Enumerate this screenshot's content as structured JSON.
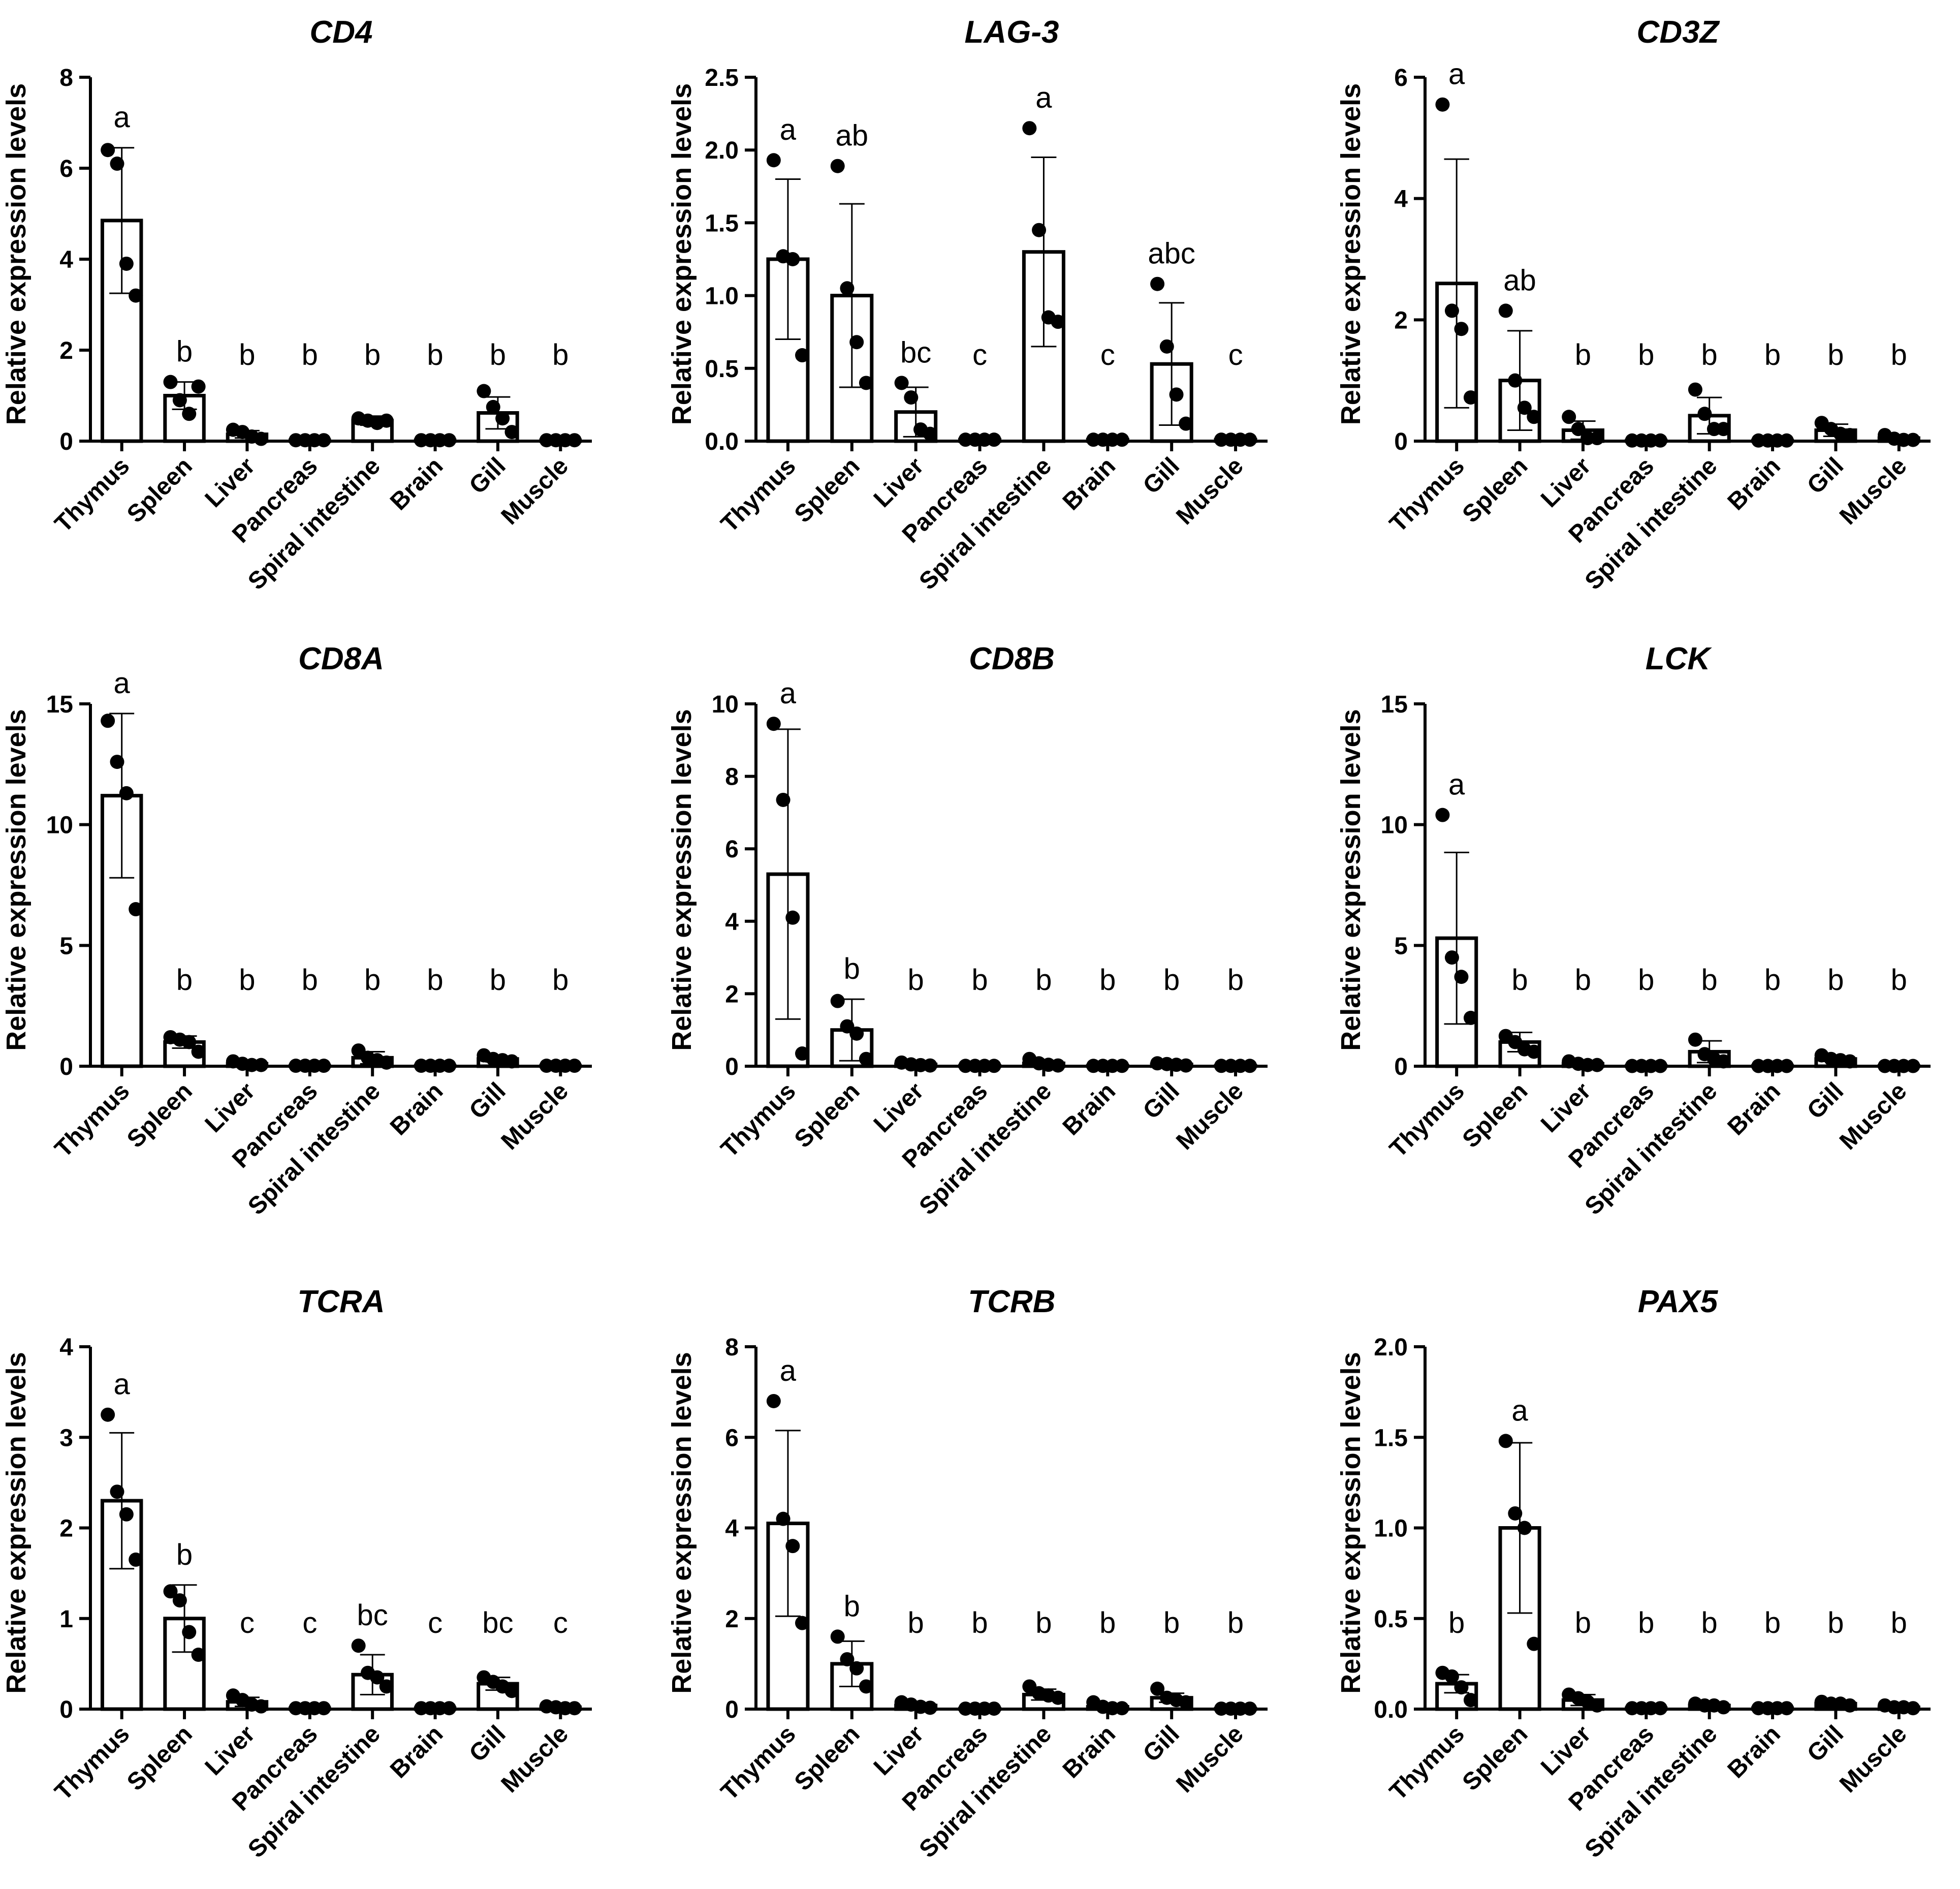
{
  "chart_data": [
    {
      "type": "bar",
      "title": "CD4",
      "ylabel": "Relative expression levels",
      "categories": [
        "Thymus",
        "Spleen",
        "Liver",
        "Pancreas",
        "Spiral intestine",
        "Brain",
        "Gill",
        "Muscle"
      ],
      "ylim": [
        0,
        8
      ],
      "yticks": [
        0,
        2,
        4,
        6,
        8
      ],
      "ytick_labels": [
        "0",
        "2",
        "4",
        "6",
        "8"
      ],
      "values": [
        4.85,
        1.0,
        0.15,
        0.02,
        0.45,
        0.02,
        0.62,
        0.02
      ],
      "errors": [
        1.6,
        0.3,
        0.08,
        0.02,
        0.1,
        0.02,
        0.35,
        0.02
      ],
      "points": [
        [
          6.4,
          6.1,
          3.9,
          3.2
        ],
        [
          1.3,
          0.9,
          0.6,
          1.2
        ],
        [
          0.25,
          0.2,
          0.1,
          0.05
        ],
        [
          0.02,
          0.02,
          0.02,
          0.02
        ],
        [
          0.5,
          0.45,
          0.4,
          0.45
        ],
        [
          0.02,
          0.02,
          0.02,
          0.02
        ],
        [
          1.1,
          0.75,
          0.5,
          0.2
        ],
        [
          0.02,
          0.02,
          0.02,
          0.02
        ]
      ],
      "letters": [
        "a",
        "b",
        "b",
        "b",
        "b",
        "b",
        "b",
        "b"
      ]
    },
    {
      "type": "bar",
      "title": "LAG-3",
      "ylabel": "Relative expression levels",
      "categories": [
        "Thymus",
        "Spleen",
        "Liver",
        "Pancreas",
        "Spiral intestine",
        "Brain",
        "Gill",
        "Muscle"
      ],
      "ylim": [
        0,
        2.5
      ],
      "yticks": [
        0,
        0.5,
        1.0,
        1.5,
        2.0,
        2.5
      ],
      "ytick_labels": [
        "0.0",
        "0.5",
        "1.0",
        "1.5",
        "2.0",
        "2.5"
      ],
      "values": [
        1.25,
        1.0,
        0.2,
        0.01,
        1.3,
        0.01,
        0.53,
        0.01
      ],
      "errors": [
        0.55,
        0.63,
        0.17,
        0.01,
        0.65,
        0.01,
        0.42,
        0.01
      ],
      "points": [
        [
          1.93,
          1.27,
          1.25,
          0.59
        ],
        [
          1.89,
          1.05,
          0.68,
          0.4
        ],
        [
          0.4,
          0.3,
          0.08,
          0.05
        ],
        [
          0.01,
          0.01,
          0.01,
          0.01
        ],
        [
          2.15,
          1.45,
          0.85,
          0.82
        ],
        [
          0.01,
          0.01,
          0.01,
          0.01
        ],
        [
          1.08,
          0.65,
          0.32,
          0.12
        ],
        [
          0.01,
          0.01,
          0.01,
          0.01
        ]
      ],
      "letters": [
        "a",
        "ab",
        "bc",
        "c",
        "a",
        "c",
        "abc",
        "c"
      ]
    },
    {
      "type": "bar",
      "title": "CD3Z",
      "ylabel": "Relative expression levels",
      "categories": [
        "Thymus",
        "Spleen",
        "Liver",
        "Pancreas",
        "Spiral intestine",
        "Brain",
        "Gill",
        "Muscle"
      ],
      "ylim": [
        0,
        6
      ],
      "yticks": [
        0,
        2,
        4,
        6
      ],
      "ytick_labels": [
        "0",
        "2",
        "4",
        "6"
      ],
      "values": [
        2.6,
        1.0,
        0.18,
        0.01,
        0.42,
        0.01,
        0.18,
        0.05
      ],
      "errors": [
        2.05,
        0.82,
        0.15,
        0.01,
        0.3,
        0.01,
        0.1,
        0.04
      ],
      "points": [
        [
          5.55,
          2.15,
          1.85,
          0.72
        ],
        [
          2.15,
          1.0,
          0.55,
          0.4
        ],
        [
          0.4,
          0.2,
          0.05,
          0.05
        ],
        [
          0.01,
          0.01,
          0.01,
          0.01
        ],
        [
          0.85,
          0.45,
          0.2,
          0.2
        ],
        [
          0.01,
          0.01,
          0.01,
          0.01
        ],
        [
          0.3,
          0.2,
          0.12,
          0.1
        ],
        [
          0.1,
          0.04,
          0.02,
          0.02
        ]
      ],
      "letters": [
        "a",
        "ab",
        "b",
        "b",
        "b",
        "b",
        "b",
        "b"
      ]
    },
    {
      "type": "bar",
      "title": "CD8A",
      "ylabel": "Relative expression levels",
      "categories": [
        "Thymus",
        "Spleen",
        "Liver",
        "Pancreas",
        "Spiral intestine",
        "Brain",
        "Gill",
        "Muscle"
      ],
      "ylim": [
        0,
        15
      ],
      "yticks": [
        0,
        5,
        10,
        15
      ],
      "ytick_labels": [
        "0",
        "5",
        "10",
        "15"
      ],
      "values": [
        11.2,
        1.0,
        0.1,
        0.02,
        0.35,
        0.02,
        0.3,
        0.02
      ],
      "errors": [
        3.4,
        0.25,
        0.06,
        0.02,
        0.25,
        0.02,
        0.12,
        0.02
      ],
      "points": [
        [
          14.3,
          12.6,
          11.3,
          6.5
        ],
        [
          1.2,
          1.1,
          1.0,
          0.6
        ],
        [
          0.2,
          0.1,
          0.05,
          0.05
        ],
        [
          0.02,
          0.02,
          0.02,
          0.02
        ],
        [
          0.65,
          0.35,
          0.25,
          0.15
        ],
        [
          0.02,
          0.02,
          0.02,
          0.02
        ],
        [
          0.45,
          0.3,
          0.25,
          0.2
        ],
        [
          0.02,
          0.02,
          0.02,
          0.02
        ]
      ],
      "letters": [
        "a",
        "b",
        "b",
        "b",
        "b",
        "b",
        "b",
        "b"
      ]
    },
    {
      "type": "bar",
      "title": "CD8B",
      "ylabel": "Relative expression levels",
      "categories": [
        "Thymus",
        "Spleen",
        "Liver",
        "Pancreas",
        "Spiral intestine",
        "Brain",
        "Gill",
        "Muscle"
      ],
      "ylim": [
        0,
        10
      ],
      "yticks": [
        0,
        2,
        4,
        6,
        8,
        10
      ],
      "ytick_labels": [
        "0",
        "2",
        "4",
        "6",
        "8",
        "10"
      ],
      "values": [
        5.3,
        1.0,
        0.05,
        0.01,
        0.08,
        0.01,
        0.05,
        0.01
      ],
      "errors": [
        4.0,
        0.85,
        0.04,
        0.01,
        0.06,
        0.01,
        0.03,
        0.01
      ],
      "points": [
        [
          9.45,
          7.35,
          4.1,
          0.35
        ],
        [
          1.8,
          1.1,
          0.9,
          0.2
        ],
        [
          0.1,
          0.05,
          0.03,
          0.02
        ],
        [
          0.01,
          0.01,
          0.01,
          0.01
        ],
        [
          0.2,
          0.08,
          0.04,
          0.02
        ],
        [
          0.01,
          0.01,
          0.01,
          0.01
        ],
        [
          0.08,
          0.06,
          0.04,
          0.02
        ],
        [
          0.01,
          0.01,
          0.01,
          0.01
        ]
      ],
      "letters": [
        "a",
        "b",
        "b",
        "b",
        "b",
        "b",
        "b",
        "b"
      ]
    },
    {
      "type": "bar",
      "title": "LCK",
      "ylabel": "Relative expression levels",
      "categories": [
        "Thymus",
        "Spleen",
        "Liver",
        "Pancreas",
        "Spiral intestine",
        "Brain",
        "Gill",
        "Muscle"
      ],
      "ylim": [
        0,
        15
      ],
      "yticks": [
        0,
        5,
        10,
        15
      ],
      "ytick_labels": [
        "0",
        "5",
        "10",
        "15"
      ],
      "values": [
        5.3,
        1.0,
        0.1,
        0.01,
        0.6,
        0.01,
        0.3,
        0.01
      ],
      "errors": [
        3.55,
        0.4,
        0.06,
        0.01,
        0.45,
        0.01,
        0.1,
        0.01
      ],
      "points": [
        [
          10.4,
          4.5,
          3.7,
          2.0
        ],
        [
          1.25,
          1.0,
          0.7,
          0.6
        ],
        [
          0.2,
          0.1,
          0.05,
          0.05
        ],
        [
          0.01,
          0.01,
          0.01,
          0.01
        ],
        [
          1.1,
          0.5,
          0.3,
          0.2
        ],
        [
          0.01,
          0.01,
          0.01,
          0.01
        ],
        [
          0.45,
          0.3,
          0.25,
          0.2
        ],
        [
          0.01,
          0.01,
          0.01,
          0.01
        ]
      ],
      "letters": [
        "a",
        "b",
        "b",
        "b",
        "b",
        "b",
        "b",
        "b"
      ]
    },
    {
      "type": "bar",
      "title": "TCRA",
      "ylabel": "Relative expression levels",
      "categories": [
        "Thymus",
        "Spleen",
        "Liver",
        "Pancreas",
        "Spiral intestine",
        "Brain",
        "Gill",
        "Muscle"
      ],
      "ylim": [
        0,
        4
      ],
      "yticks": [
        0,
        1,
        2,
        3,
        4
      ],
      "ytick_labels": [
        "0",
        "1",
        "2",
        "3",
        "4"
      ],
      "values": [
        2.3,
        1.0,
        0.08,
        0.01,
        0.38,
        0.01,
        0.28,
        0.02
      ],
      "errors": [
        0.75,
        0.37,
        0.05,
        0.01,
        0.22,
        0.01,
        0.07,
        0.02
      ],
      "points": [
        [
          3.25,
          2.4,
          2.15,
          1.65
        ],
        [
          1.3,
          1.2,
          0.85,
          0.6
        ],
        [
          0.15,
          0.1,
          0.05,
          0.03
        ],
        [
          0.01,
          0.01,
          0.01,
          0.01
        ],
        [
          0.7,
          0.4,
          0.35,
          0.25
        ],
        [
          0.01,
          0.01,
          0.01,
          0.01
        ],
        [
          0.35,
          0.3,
          0.25,
          0.2
        ],
        [
          0.03,
          0.02,
          0.01,
          0.01
        ]
      ],
      "letters": [
        "a",
        "b",
        "c",
        "c",
        "bc",
        "c",
        "bc",
        "c"
      ]
    },
    {
      "type": "bar",
      "title": "TCRB",
      "ylabel": "Relative expression levels",
      "categories": [
        "Thymus",
        "Spleen",
        "Liver",
        "Pancreas",
        "Spiral intestine",
        "Brain",
        "Gill",
        "Muscle"
      ],
      "ylim": [
        0,
        8
      ],
      "yticks": [
        0,
        2,
        4,
        6,
        8
      ],
      "ytick_labels": [
        "0",
        "2",
        "4",
        "6",
        "8"
      ],
      "values": [
        4.1,
        1.0,
        0.08,
        0.01,
        0.32,
        0.05,
        0.25,
        0.01
      ],
      "errors": [
        2.05,
        0.5,
        0.05,
        0.01,
        0.12,
        0.04,
        0.1,
        0.01
      ],
      "points": [
        [
          6.8,
          4.2,
          3.6,
          1.9
        ],
        [
          1.6,
          1.1,
          0.9,
          0.5
        ],
        [
          0.15,
          0.1,
          0.05,
          0.03
        ],
        [
          0.01,
          0.01,
          0.01,
          0.01
        ],
        [
          0.5,
          0.35,
          0.3,
          0.25
        ],
        [
          0.15,
          0.05,
          0.02,
          0.02
        ],
        [
          0.45,
          0.25,
          0.2,
          0.15
        ],
        [
          0.01,
          0.01,
          0.01,
          0.01
        ]
      ],
      "letters": [
        "a",
        "b",
        "b",
        "b",
        "b",
        "b",
        "b",
        "b"
      ]
    },
    {
      "type": "bar",
      "title": "PAX5",
      "ylabel": "Relative expression levels",
      "categories": [
        "Thymus",
        "Spleen",
        "Liver",
        "Pancreas",
        "Spiral intestine",
        "Brain",
        "Gill",
        "Muscle"
      ],
      "ylim": [
        0,
        2.0
      ],
      "yticks": [
        0,
        0.5,
        1.0,
        1.5,
        2.0
      ],
      "ytick_labels": [
        "0.0",
        "0.5",
        "1.0",
        "1.5",
        "2.0"
      ],
      "values": [
        0.14,
        1.0,
        0.05,
        0.005,
        0.02,
        0.005,
        0.03,
        0.01
      ],
      "errors": [
        0.05,
        0.47,
        0.03,
        0.005,
        0.01,
        0.005,
        0.01,
        0.01
      ],
      "points": [
        [
          0.2,
          0.18,
          0.12,
          0.05
        ],
        [
          1.48,
          1.08,
          1.0,
          0.36
        ],
        [
          0.08,
          0.06,
          0.04,
          0.02
        ],
        [
          0.005,
          0.005,
          0.005,
          0.005
        ],
        [
          0.03,
          0.02,
          0.02,
          0.01
        ],
        [
          0.005,
          0.005,
          0.005,
          0.005
        ],
        [
          0.04,
          0.03,
          0.03,
          0.02
        ],
        [
          0.02,
          0.01,
          0.01,
          0.005
        ]
      ],
      "letters": [
        "b",
        "a",
        "b",
        "b",
        "b",
        "b",
        "b",
        "b"
      ]
    }
  ]
}
